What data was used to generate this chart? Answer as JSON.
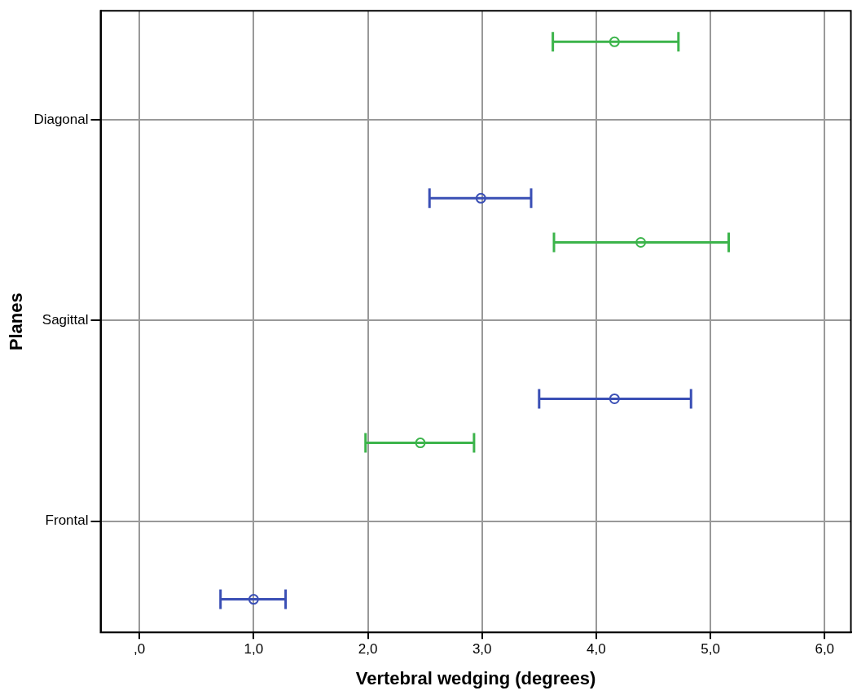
{
  "chart_data": {
    "type": "scatter",
    "orientation": "horizontal",
    "xlabel": "Vertebral wedging (degrees)",
    "ylabel": "Planes",
    "categories": [
      "Diagonal",
      "Sagittal",
      "Frontal"
    ],
    "series": [
      {
        "color": "#3cb44b",
        "values": [
          4.16,
          4.39,
          2.46
        ],
        "errors": [
          [
            3.62,
            4.72
          ],
          [
            3.63,
            5.16
          ],
          [
            1.98,
            2.93
          ]
        ]
      },
      {
        "color": "#3a4fb5",
        "values": [
          2.99,
          4.16,
          1.0
        ],
        "errors": [
          [
            2.54,
            3.43
          ],
          [
            3.5,
            4.83
          ],
          [
            0.71,
            1.28
          ]
        ]
      }
    ],
    "xlim": [
      -0.34,
      6.23
    ],
    "xticks": [
      {
        "value": 0,
        "label": ",0"
      },
      {
        "value": 1,
        "label": "1,0"
      },
      {
        "value": 2,
        "label": "2,0"
      },
      {
        "value": 3,
        "label": "3,0"
      },
      {
        "value": 4,
        "label": "4,0"
      },
      {
        "value": 5,
        "label": "5,0"
      },
      {
        "value": 6,
        "label": "6,0"
      }
    ],
    "grid": true,
    "marker": "circle"
  }
}
